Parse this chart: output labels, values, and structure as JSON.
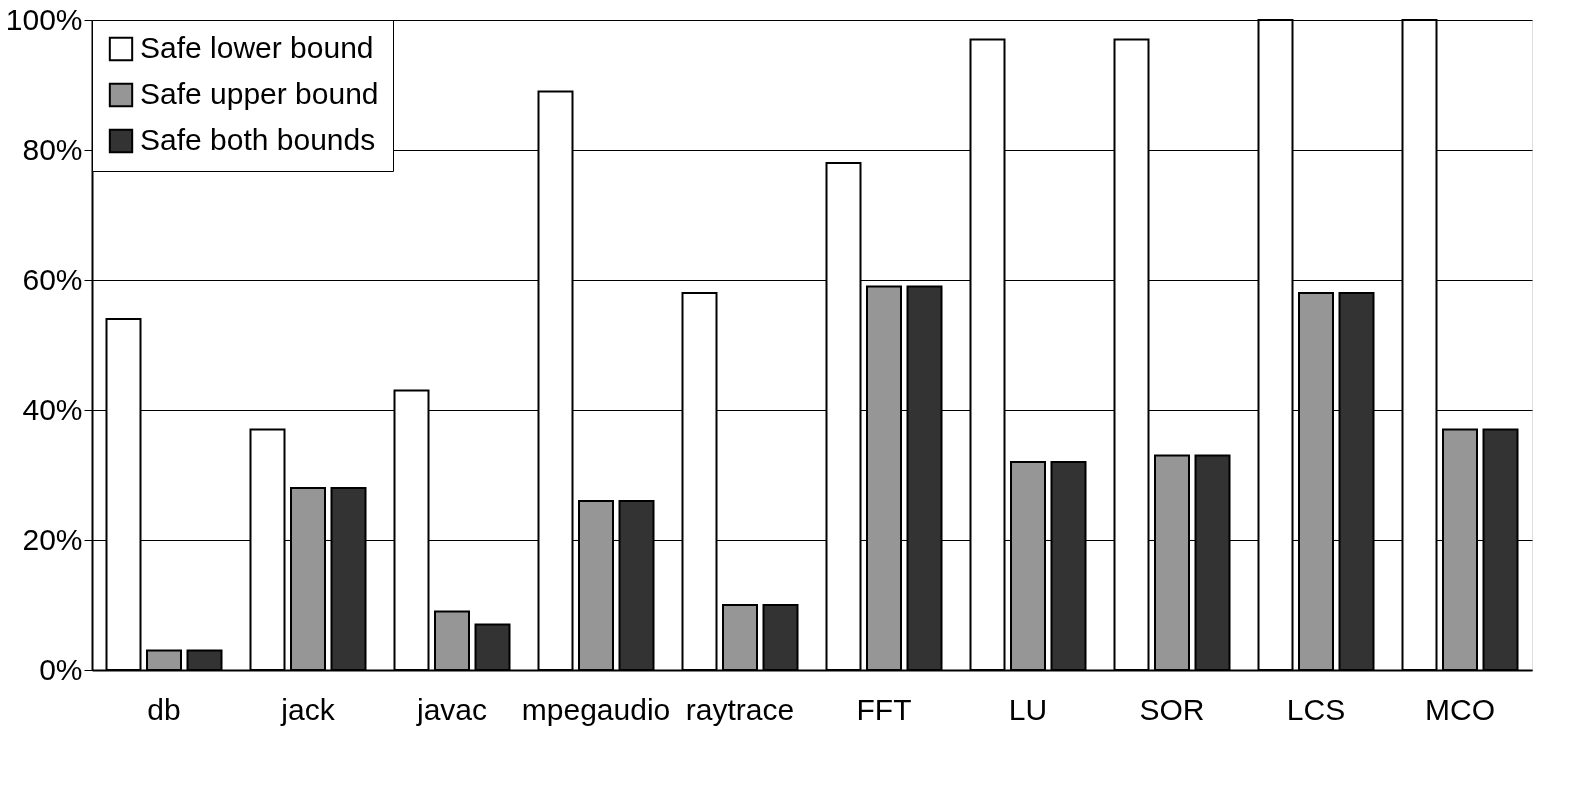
{
  "chart_data": {
    "type": "bar",
    "categories": [
      "db",
      "jack",
      "javac",
      "mpegaudio",
      "raytrace",
      "FFT",
      "LU",
      "SOR",
      "LCS",
      "MCO"
    ],
    "series": [
      {
        "name": "Safe lower bound",
        "color": "#ffffff",
        "values": [
          54,
          37,
          43,
          89,
          58,
          78,
          97,
          97,
          100,
          100
        ]
      },
      {
        "name": "Safe upper bound",
        "color": "#969696",
        "values": [
          3,
          28,
          9,
          26,
          10,
          59,
          32,
          33,
          58,
          37
        ]
      },
      {
        "name": "Safe both bounds",
        "color": "#333333",
        "values": [
          3,
          28,
          7,
          26,
          10,
          59,
          32,
          33,
          58,
          37
        ]
      }
    ],
    "ylim": [
      0,
      100
    ],
    "yticks": [
      {
        "value": 0,
        "label": "0%"
      },
      {
        "value": 20,
        "label": "20%"
      },
      {
        "value": 40,
        "label": "40%"
      },
      {
        "value": 60,
        "label": "60%"
      },
      {
        "value": 80,
        "label": "80%"
      },
      {
        "value": 100,
        "label": "100%"
      }
    ],
    "grid": "y",
    "legend": "top left"
  }
}
